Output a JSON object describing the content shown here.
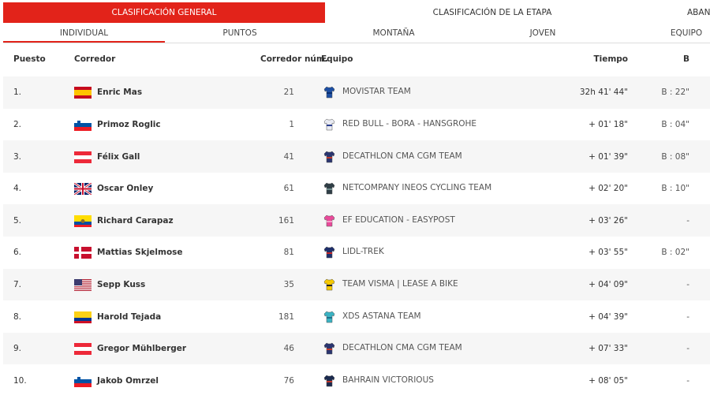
{
  "tabs": [
    "CLASIFICACIÓN GENERAL",
    "CLASIFICACIÓN DE LA ETAPA",
    "ABANI"
  ],
  "subtabs": [
    "INDIVIDUAL",
    "PUNTOS",
    "MONTAÑA",
    "JOVEN",
    "EQUIPO"
  ],
  "table": {
    "header": [
      "Puesto",
      "Corredor",
      "Corredor núm.",
      "Equipo",
      "Tiempo",
      "B"
    ],
    "rows": [
      [
        "1.",
        "Enric Mas",
        "21",
        "MOVISTAR TEAM",
        "32h 41' 44\"",
        "B : 22\""
      ],
      [
        "2.",
        "Primoz Roglic",
        "1",
        "RED BULL - BORA - HANSGROHE",
        "+ 01' 18\"",
        "B : 04\""
      ],
      [
        "3.",
        "Félix Gall",
        "41",
        "DECATHLON CMA CGM TEAM",
        "+ 01' 39\"",
        "B : 08\""
      ],
      [
        "4.",
        "Oscar Onley",
        "61",
        "NETCOMPANY INEOS CYCLING TEAM",
        "+ 02' 20\"",
        "B : 10\""
      ],
      [
        "5.",
        "Richard Carapaz",
        "161",
        "EF EDUCATION - EASYPOST",
        "+ 03' 26\"",
        "-"
      ],
      [
        "6.",
        "Mattias Skjelmose",
        "81",
        "LIDL-TREK",
        "+ 03' 55\"",
        "B : 02\""
      ],
      [
        "7.",
        "Sepp Kuss",
        "35",
        "TEAM VISMA | LEASE A BIKE",
        "+ 04' 09\"",
        "-"
      ],
      [
        "8.",
        "Harold Tejada",
        "181",
        "XDS ASTANA TEAM",
        "+ 04' 39\"",
        "-"
      ],
      [
        "9.",
        "Gregor Mühlberger",
        "46",
        "DECATHLON CMA CGM TEAM",
        "+ 07' 33\"",
        "-"
      ],
      [
        "10.",
        "Jakob Omrzel",
        "76",
        "BAHRAIN VICTORIOUS",
        "+ 08' 05\"",
        "-"
      ]
    ]
  }
}
